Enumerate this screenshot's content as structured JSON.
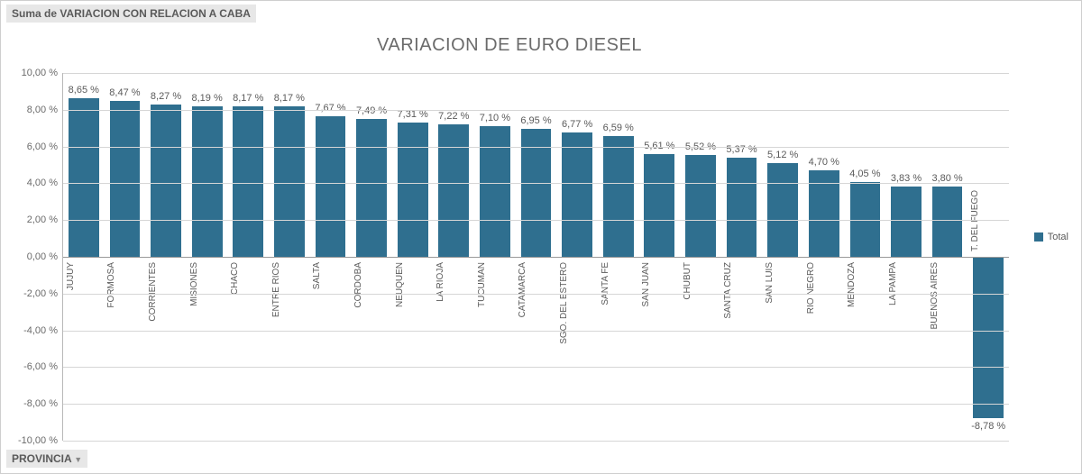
{
  "header_label": "Suma de VARIACION CON RELACION A CABA",
  "footer_label": "PROVINCIA",
  "chart": {
    "type": "bar",
    "title": "VARIACION DE EURO DIESEL",
    "title_fontsize": 20,
    "title_color": "#6b6b6b",
    "bar_color": "#2f6f8f",
    "background_color": "#ffffff",
    "grid_color": "#d6d6d6",
    "axis_color": "#b8b8b8",
    "zero_line_color": "#9a9a9a",
    "label_color": "#5a5a5a",
    "tick_fontsize": 11,
    "category_fontsize": 10,
    "value_fontsize": 11,
    "bar_width": 0.74,
    "ylim_min": -10,
    "ylim_max": 10,
    "ytick_step": 2,
    "yticks": [
      {
        "value": 10,
        "label": "10,00 %"
      },
      {
        "value": 8,
        "label": "8,00 %"
      },
      {
        "value": 6,
        "label": "6,00 %"
      },
      {
        "value": 4,
        "label": "4,00 %"
      },
      {
        "value": 2,
        "label": "2,00 %"
      },
      {
        "value": 0,
        "label": "0,00 %"
      },
      {
        "value": -2,
        "label": "-2,00 %"
      },
      {
        "value": -4,
        "label": "-4,00 %"
      },
      {
        "value": -6,
        "label": "-6,00 %"
      },
      {
        "value": -8,
        "label": "-8,00 %"
      },
      {
        "value": -10,
        "label": "-10,00 %"
      }
    ],
    "legend": {
      "label": "Total",
      "color": "#2f6f8f",
      "position": "right"
    },
    "data": [
      {
        "category": "JUJUY",
        "value": 8.65,
        "label": "8,65 %"
      },
      {
        "category": "FORMOSA",
        "value": 8.47,
        "label": "8,47 %"
      },
      {
        "category": "CORRIENTES",
        "value": 8.27,
        "label": "8,27 %"
      },
      {
        "category": "MISIONES",
        "value": 8.19,
        "label": "8,19 %"
      },
      {
        "category": "CHACO",
        "value": 8.17,
        "label": "8,17 %"
      },
      {
        "category": "ENTRE RIOS",
        "value": 8.17,
        "label": "8,17 %"
      },
      {
        "category": "SALTA",
        "value": 7.67,
        "label": "7,67 %"
      },
      {
        "category": "CORDOBA",
        "value": 7.49,
        "label": "7,49 %"
      },
      {
        "category": "NEUQUEN",
        "value": 7.31,
        "label": "7,31 %"
      },
      {
        "category": "LA RIOJA",
        "value": 7.22,
        "label": "7,22 %"
      },
      {
        "category": "TUCUMAN",
        "value": 7.1,
        "label": "7,10 %"
      },
      {
        "category": "CATAMARCA",
        "value": 6.95,
        "label": "6,95 %"
      },
      {
        "category": "SGO. DEL ESTERO",
        "value": 6.77,
        "label": "6,77 %"
      },
      {
        "category": "SANTA FE",
        "value": 6.59,
        "label": "6,59 %"
      },
      {
        "category": "SAN JUAN",
        "value": 5.61,
        "label": "5,61 %"
      },
      {
        "category": "CHUBUT",
        "value": 5.52,
        "label": "5,52 %"
      },
      {
        "category": "SANTA CRUZ",
        "value": 5.37,
        "label": "5,37 %"
      },
      {
        "category": "SAN LUIS",
        "value": 5.12,
        "label": "5,12 %"
      },
      {
        "category": "RIO NEGRO",
        "value": 4.7,
        "label": "4,70 %"
      },
      {
        "category": "MENDOZA",
        "value": 4.05,
        "label": "4,05 %"
      },
      {
        "category": "LA PAMPA",
        "value": 3.83,
        "label": "3,83 %"
      },
      {
        "category": "BUENOS AIRES",
        "value": 3.8,
        "label": "3,80 %"
      },
      {
        "category": "T. DEL FUEGO",
        "value": -8.78,
        "label": "-8,78 %"
      }
    ]
  }
}
